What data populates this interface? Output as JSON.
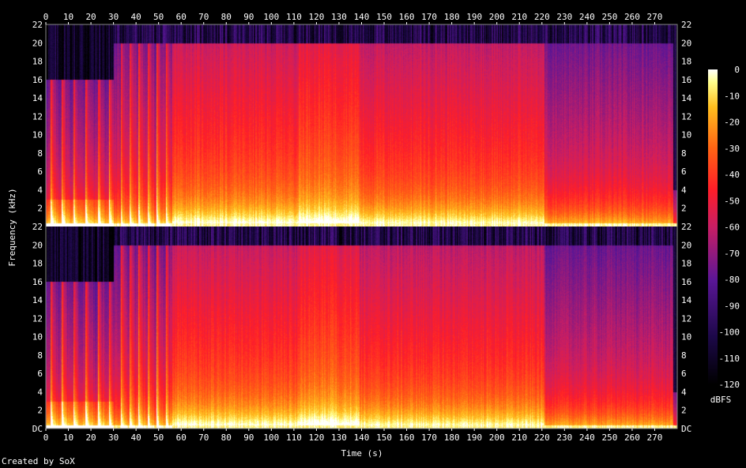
{
  "chart_data": {
    "type": "heatmap",
    "title": "",
    "xlabel": "Time (s)",
    "ylabel": "Frequency (kHz)",
    "x_ticks": [
      "0",
      "10",
      "20",
      "30",
      "40",
      "50",
      "60",
      "70",
      "80",
      "90",
      "100",
      "110",
      "120",
      "130",
      "140",
      "150",
      "160",
      "170",
      "180",
      "190",
      "200",
      "210",
      "220",
      "230",
      "240",
      "250",
      "260",
      "270"
    ],
    "xlim": [
      0,
      280
    ],
    "y_ticks_top": [
      "22",
      "20",
      "18",
      "16",
      "14",
      "12",
      "10",
      "8",
      "6",
      "4",
      "2"
    ],
    "y_ticks_bottom": [
      "22",
      "20",
      "18",
      "16",
      "14",
      "12",
      "10",
      "8",
      "6",
      "4",
      "2",
      "DC"
    ],
    "ylim_khz": [
      0,
      22
    ],
    "channels": [
      {
        "name": "",
        "panel": "top"
      },
      {
        "name": "",
        "panel": "bottom"
      }
    ],
    "colorbar": {
      "unit": "dBFS",
      "range": [
        -120,
        0
      ],
      "ticks": [
        "0",
        "-10",
        "-20",
        "-30",
        "-40",
        "-50",
        "-60",
        "-70",
        "-80",
        "-90",
        "-100",
        "-110",
        "-120"
      ]
    },
    "segments": [
      {
        "t0": 0,
        "t1": 30,
        "level": 0.55,
        "bandwidth_khz": 16,
        "transients": [
          2,
          7,
          12,
          17.5,
          23,
          28
        ]
      },
      {
        "t0": 30,
        "t1": 56,
        "level": 0.6,
        "bandwidth_khz": 20,
        "transients": [
          33,
          37,
          41,
          45,
          49,
          53
        ]
      },
      {
        "t0": 56,
        "t1": 112,
        "level": 0.75,
        "bandwidth_khz": 20
      },
      {
        "t0": 112,
        "t1": 139,
        "level": 0.8,
        "bandwidth_khz": 20
      },
      {
        "t0": 139,
        "t1": 221,
        "level": 0.73,
        "bandwidth_khz": 20
      },
      {
        "t0": 221,
        "t1": 278,
        "level": 0.6,
        "bandwidth_khz": 20
      },
      {
        "t0": 278,
        "t1": 280,
        "level": 0.4,
        "bandwidth_khz": 4
      }
    ],
    "grid": false,
    "colorbar_position": "right"
  },
  "footer": "Created by SoX"
}
